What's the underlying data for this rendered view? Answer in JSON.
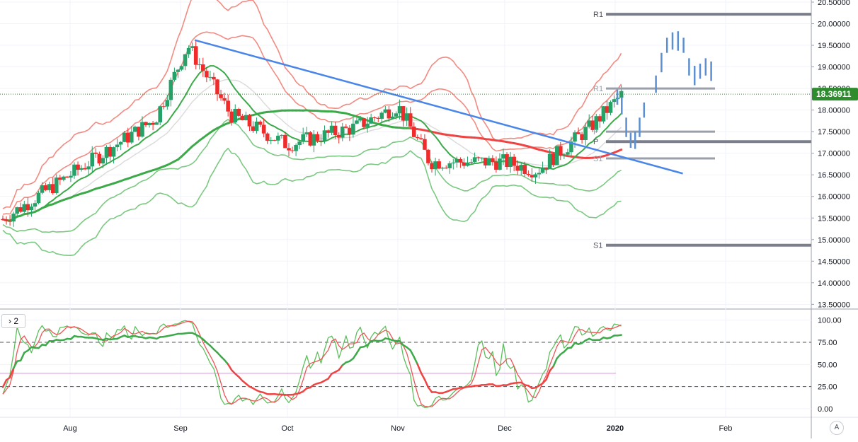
{
  "ui": {
    "pane_toggle": "› 2",
    "auto_scale": "A"
  },
  "colors": {
    "bull": "#26a269",
    "bear": "#ef2b2b",
    "trendline": "#4a86e8",
    "projection": "#5b8fd0",
    "bb_red": "#f28b82",
    "bb_green": "#7cc982",
    "ma_green": "#3daa4a",
    "ma_red": "#ee4444",
    "pivot": "#7b7f8b",
    "price_label": "#2e8b2e"
  },
  "chart_data": [
    {
      "type": "candlestick",
      "title": "",
      "price_axis": [
        "20.50000",
        "20.00000",
        "19.50000",
        "19.00000",
        "18.50000",
        "18.00000",
        "17.50000",
        "17.00000",
        "16.50000",
        "16.00000",
        "15.50000",
        "15.00000",
        "14.50000",
        "14.00000",
        "13.50000"
      ],
      "time_axis": [
        "Aug",
        "Sep",
        "Oct",
        "Nov",
        "Dec",
        "2020",
        "Feb"
      ],
      "ylim": [
        13.45,
        20.55
      ],
      "last_price": "18.36911",
      "pivot_labels": {
        "r1": "R1",
        "p": "P",
        "s1": "S1"
      },
      "pivots_major": {
        "R1": 20.22,
        "P": 17.27,
        "S1": 14.87
      },
      "pivots_minor": {
        "R1": 18.5,
        "P": 17.5,
        "S1": 16.88
      },
      "trendline": [
        {
          "date": "2019-09-05",
          "price": 19.62
        },
        {
          "date": "2020-01-20",
          "price": 16.53
        }
      ],
      "ohlc_monthly_close": [
        {
          "date": "2019-07-10",
          "close": 15.3
        },
        {
          "date": "2019-08-01",
          "close": 16.5
        },
        {
          "date": "2019-08-25",
          "close": 17.8
        },
        {
          "date": "2019-09-03",
          "close": 19.5
        },
        {
          "date": "2019-09-15",
          "close": 17.9
        },
        {
          "date": "2019-10-01",
          "close": 17.2
        },
        {
          "date": "2019-10-20",
          "close": 17.6
        },
        {
          "date": "2019-11-01",
          "close": 18.1
        },
        {
          "date": "2019-11-10",
          "close": 16.8
        },
        {
          "date": "2019-12-01",
          "close": 16.8
        },
        {
          "date": "2019-12-10",
          "close": 16.6
        },
        {
          "date": "2019-12-25",
          "close": 17.6
        },
        {
          "date": "2020-01-03",
          "close": 18.37
        }
      ]
    },
    {
      "type": "line",
      "title": "",
      "y_axis": [
        "100.00",
        "75.00",
        "50.00",
        "25.00",
        "0.00"
      ],
      "ylim": [
        -3,
        104
      ],
      "levels": [
        75,
        40,
        25
      ]
    }
  ]
}
